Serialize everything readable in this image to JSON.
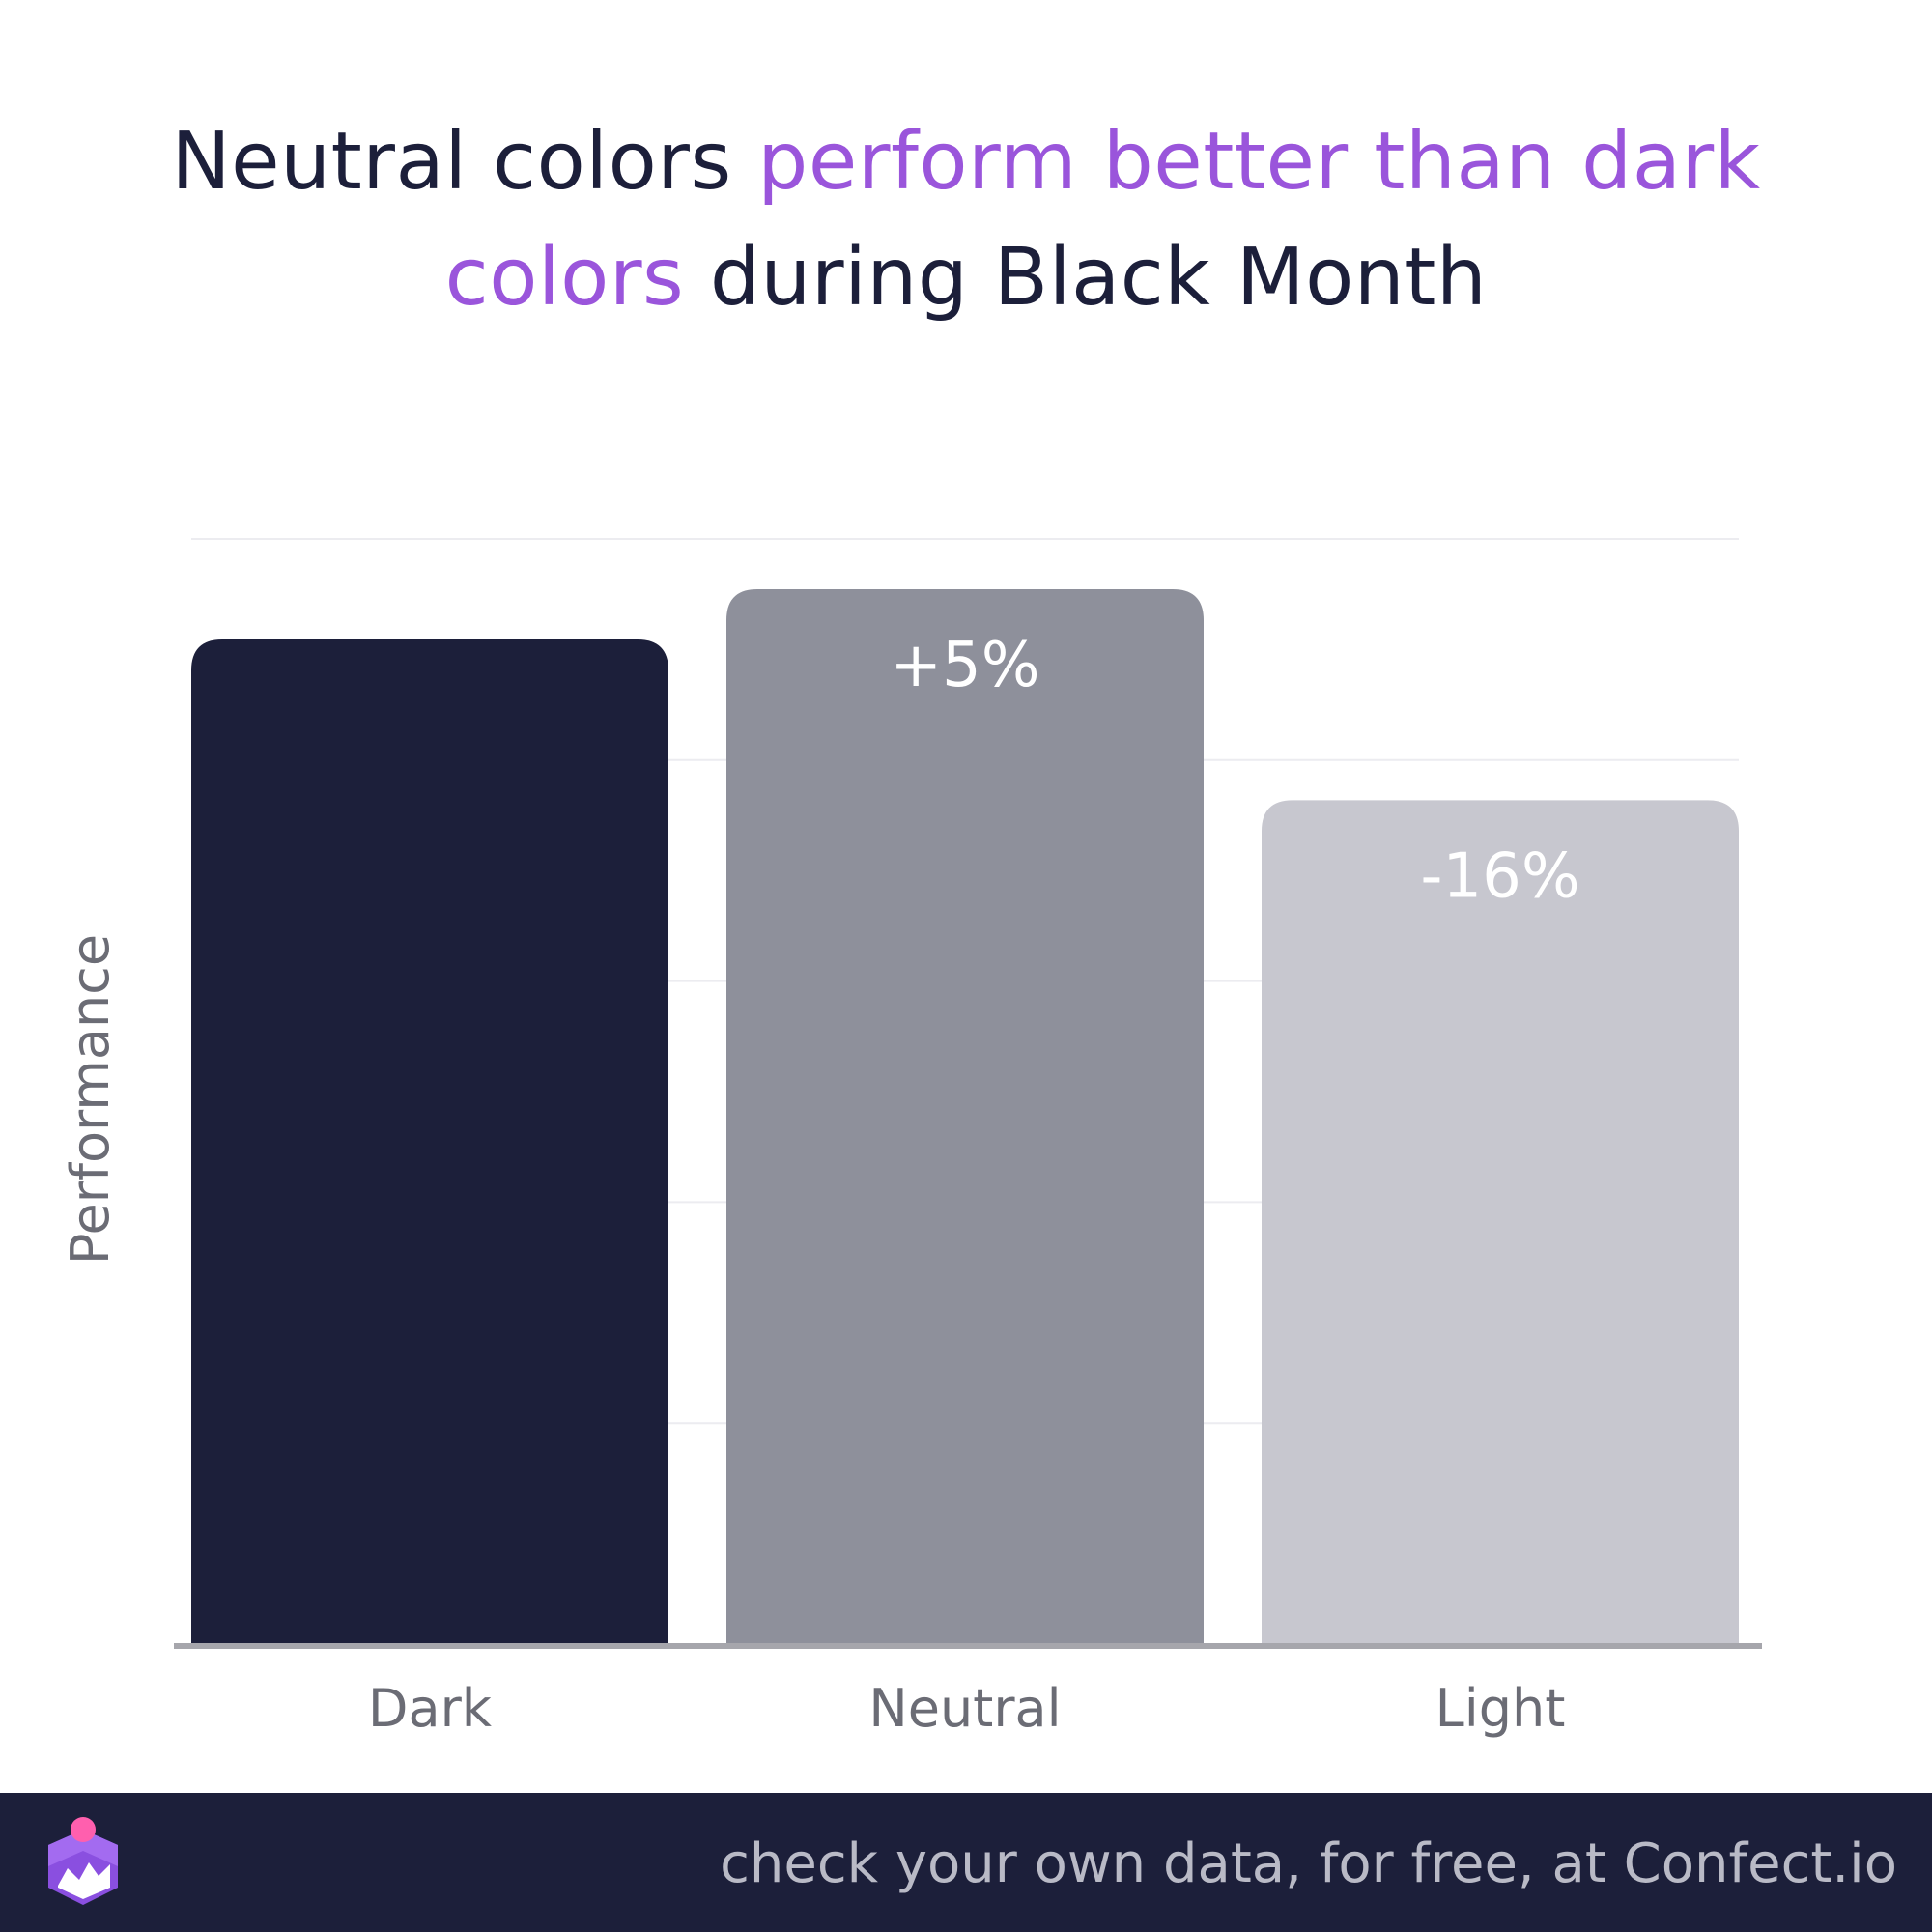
{
  "title": {
    "part1": "Neutral colors ",
    "part2": "perform better than dark colors",
    "part3": " during Black Month",
    "text_color": "#1c1f3a",
    "accent_color": "#9a55db"
  },
  "chart_data": {
    "type": "bar",
    "categories": [
      "Dark",
      "Neutral",
      "Light"
    ],
    "values": [
      100,
      105,
      84
    ],
    "data_labels": [
      "",
      "+5%",
      "-16%"
    ],
    "bar_colors": [
      "#1c1f3a",
      "#8e909b",
      "#c7c7cf"
    ],
    "ylabel": "Performance",
    "xlabel": "",
    "ylim": [
      0,
      110
    ],
    "grid": true,
    "y_tick_labels_shown": false
  },
  "footer": {
    "text": "check your own data, for free, at Confect.io",
    "background": "#1c1f3a",
    "logo_icon": "confect-logo-icon"
  }
}
